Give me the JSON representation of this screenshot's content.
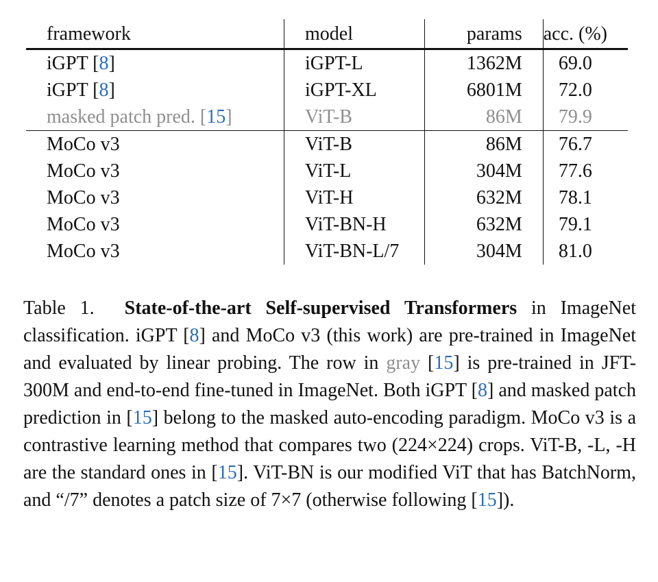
{
  "table": {
    "headers": [
      "framework",
      "model",
      "params",
      "acc. (%)"
    ],
    "rows": [
      {
        "framework": "iGPT",
        "cite": "8",
        "model": "iGPT-L",
        "params": "1362M",
        "acc": "69.0"
      },
      {
        "framework": "iGPT",
        "cite": "8",
        "model": "iGPT-XL",
        "params": "6801M",
        "acc": "72.0"
      },
      {
        "framework": "masked patch pred.",
        "cite": "15",
        "model": "ViT-B",
        "params": "86M",
        "acc": "79.9"
      },
      {
        "framework": "MoCo v3",
        "model": "ViT-B",
        "params": "86M",
        "acc": "76.7"
      },
      {
        "framework": "MoCo v3",
        "model": "ViT-L",
        "params": "304M",
        "acc": "77.6"
      },
      {
        "framework": "MoCo v3",
        "model": "ViT-H",
        "params": "632M",
        "acc": "78.1"
      },
      {
        "framework": "MoCo v3",
        "model": "ViT-BN-H",
        "params": "632M",
        "acc": "79.1"
      },
      {
        "framework": "MoCo v3",
        "model": "ViT-BN-L/7",
        "params": "304M",
        "acc": "81.0"
      }
    ]
  },
  "caption": {
    "label": "Table 1.",
    "title": "State-of-the-art Self-supervised Transformers",
    "t1": " in ImageNet classification. iGPT [",
    "c1": "8",
    "t2": "] and MoCo v3 (this work) are pre-trained in ImageNet and evaluated by linear probing. The row in ",
    "gray_word": "gray",
    "t3": " [",
    "c2": "15",
    "t4": "] is pre-trained in JFT-300M and end-to-end fine-tuned in ImageNet. Both iGPT [",
    "c3": "8",
    "t5": "] and masked patch prediction in [",
    "c4": "15",
    "t6": "] belong to the masked auto-encoding paradigm. MoCo v3 is a contrastive learning method that compares two (224×224) crops. ViT-B, -L, -H are the standard ones in [",
    "c5": "15",
    "t7": "]. ViT-BN is our modified ViT that has BatchNorm, and “/7” denotes a patch size of 7×7 (otherwise following [",
    "c6": "15",
    "t8": "])."
  },
  "colors": {
    "citation": "#2a6db8",
    "gray_row": "#8e8e8e",
    "text": "#111111"
  }
}
